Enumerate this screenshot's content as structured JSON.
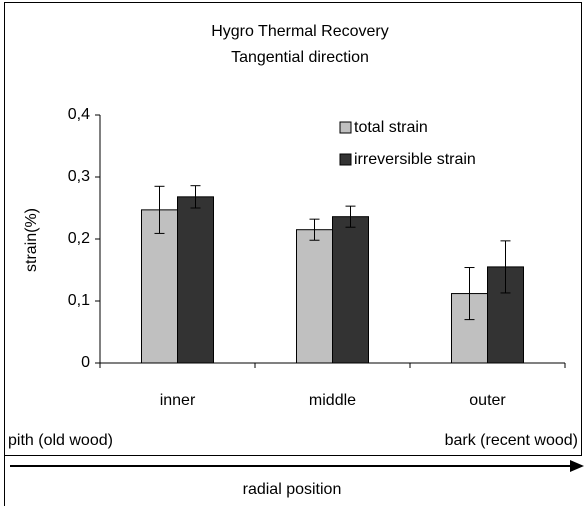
{
  "chart_data": {
    "type": "bar",
    "title": [
      "Hygro Thermal Recovery",
      "Tangential direction"
    ],
    "y_label": "strain(%)",
    "categories": [
      "inner",
      "middle",
      "outer"
    ],
    "series": [
      {
        "name": "total strain",
        "color": "#c0c0c0",
        "values": [
          0.247,
          0.215,
          0.112
        ],
        "errors": [
          0.038,
          0.017,
          0.042
        ]
      },
      {
        "name": "irreversible strain",
        "color": "#333333",
        "values": [
          0.268,
          0.236,
          0.155
        ],
        "errors": [
          0.018,
          0.017,
          0.042
        ]
      }
    ],
    "ylim": [
      0,
      0.4
    ],
    "yticks": [
      0,
      {
        "value": 0.1,
        "label": "0,1"
      },
      {
        "value": 0.2,
        "label": "0,2"
      },
      {
        "value": 0.3,
        "label": "0,3"
      },
      {
        "value": 0.4,
        "label": "0,4"
      }
    ],
    "legend": "upper right",
    "annotations": [
      "pith (old wood)",
      "bark (recent wood)",
      "radial position"
    ]
  }
}
